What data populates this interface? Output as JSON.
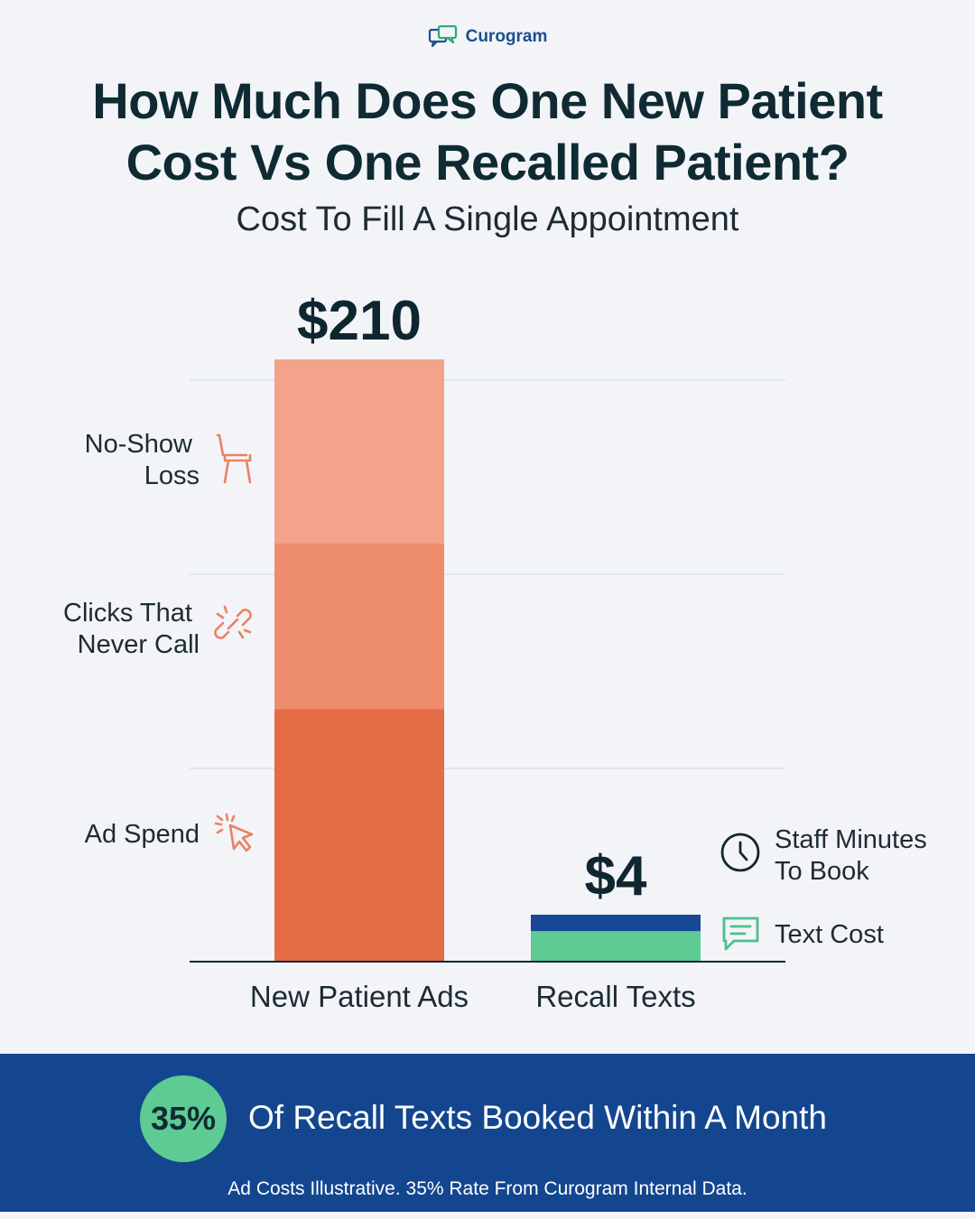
{
  "brand": {
    "name": "Curogram",
    "logo_icon": "chat-bubbles-icon"
  },
  "header": {
    "title_line1": "How Much Does One New Patient",
    "title_line2": "Cost Vs One Recalled Patient?",
    "subtitle": "Cost To Fill A Single Appointment"
  },
  "chart_data": {
    "type": "bar",
    "stacked": true,
    "categories": [
      "New Patient Ads",
      "Recall Texts"
    ],
    "totals": [
      "$210",
      "$4"
    ],
    "total_values": [
      210,
      4
    ],
    "ylim": [
      0,
      210
    ],
    "grid": true,
    "series": [
      {
        "name": "Ad Spend",
        "values": [
          88,
          0
        ],
        "color": "#e56d45",
        "icon": "cursor-click-icon"
      },
      {
        "name": "Clicks That Never Call",
        "values": [
          58,
          0
        ],
        "color": "#ee8d6d",
        "icon": "broken-link-icon"
      },
      {
        "name": "No-Show Loss",
        "values": [
          64,
          0
        ],
        "color": "#f3a38a",
        "icon": "chair-icon"
      },
      {
        "name": "Text Cost",
        "values": [
          0,
          2.6
        ],
        "color": "#5ecb94",
        "icon": "chat-message-icon"
      },
      {
        "name": "Staff Minutes To Book",
        "values": [
          0,
          1.4
        ],
        "color": "#174795",
        "icon": "clock-icon"
      }
    ],
    "left_labels": [
      {
        "lines": [
          "No-Show",
          "Loss"
        ],
        "icon": "chair-icon"
      },
      {
        "lines": [
          "Clicks That",
          "Never Call"
        ],
        "icon": "broken-link-icon"
      },
      {
        "lines": [
          "Ad Spend"
        ],
        "icon": "cursor-click-icon"
      }
    ],
    "right_labels": [
      {
        "lines": [
          "Staff Minutes",
          "To Book"
        ],
        "icon": "clock-icon"
      },
      {
        "lines": [
          "Text Cost"
        ],
        "icon": "chat-message-icon"
      }
    ]
  },
  "footer": {
    "stat": "35%",
    "stat_text": "Of Recall Texts Booked Within A Month",
    "note": "Ad Costs Illustrative. 35% Rate From Curogram Internal Data."
  }
}
